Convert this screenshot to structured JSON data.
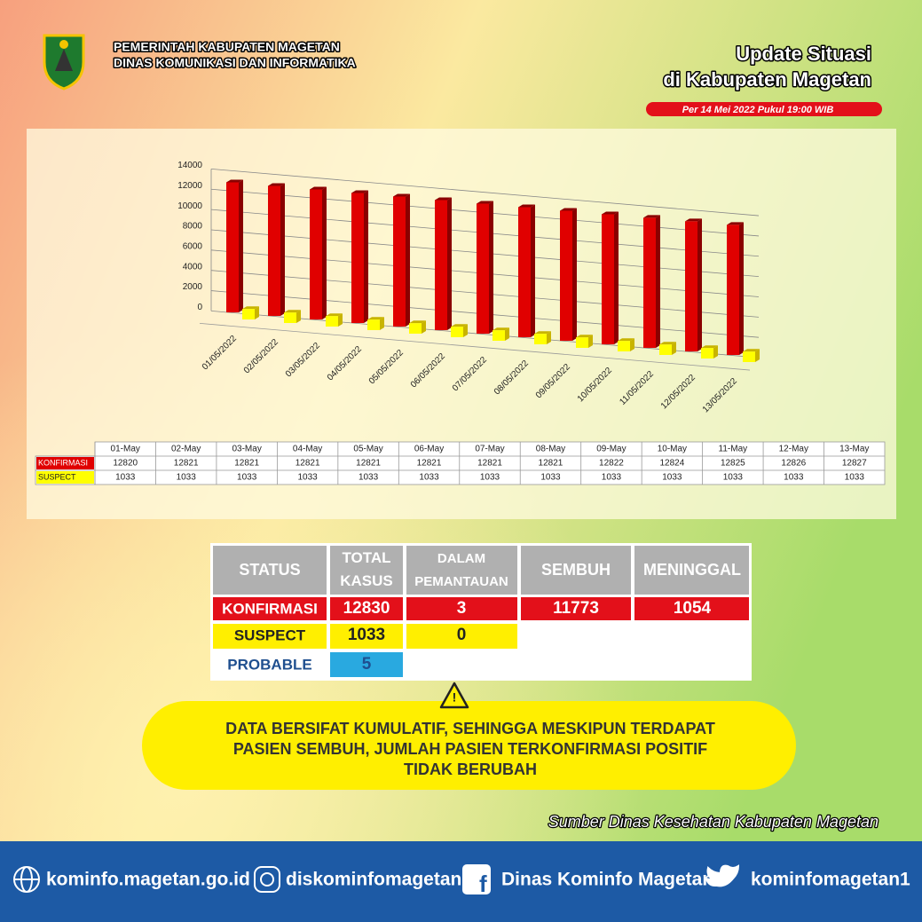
{
  "header": {
    "org_line1": "PEMERINTAH KABUPATEN MAGETAN",
    "org_line2": "DINAS KOMUNIKASI DAN INFORMATIKA",
    "title_line1": "Update Situasi",
    "title_line2": "di Kabupaten Magetan",
    "date": "Per 14 Mei 2022 Pukul 19:00 WIB"
  },
  "chart_data": {
    "type": "bar",
    "categories": [
      "01/05/2022",
      "02/05/2022",
      "03/05/2022",
      "04/05/2022",
      "05/05/2022",
      "06/05/2022",
      "07/05/2022",
      "08/05/2022",
      "09/05/2022",
      "10/05/2022",
      "11/05/2022",
      "12/05/2022",
      "13/05/2022"
    ],
    "table_categories": [
      "01-May",
      "02-May",
      "03-May",
      "04-May",
      "05-May",
      "06-May",
      "07-May",
      "08-May",
      "09-May",
      "10-May",
      "11-May",
      "12-May",
      "13-May"
    ],
    "series": [
      {
        "name": "KONFIRMASI",
        "color": "#e00000",
        "values": [
          12820,
          12821,
          12821,
          12821,
          12821,
          12821,
          12821,
          12821,
          12822,
          12824,
          12825,
          12826,
          12827
        ]
      },
      {
        "name": "SUSPECT",
        "color": "#ffff00",
        "values": [
          1033,
          1033,
          1033,
          1033,
          1033,
          1033,
          1033,
          1033,
          1033,
          1033,
          1033,
          1033,
          1033
        ]
      }
    ],
    "ylim": [
      0,
      14000
    ],
    "yticks": [
      0,
      2000,
      4000,
      6000,
      8000,
      10000,
      12000,
      14000
    ],
    "grid": true
  },
  "status_table": {
    "headers": [
      "STATUS",
      "TOTAL KASUS",
      "DALAM PEMANTAUAN",
      "SEMBUH",
      "MENINGGAL"
    ],
    "rows": [
      [
        "KONFIRMASI",
        "12830",
        "3",
        "11773",
        "1054"
      ],
      [
        "SUSPECT",
        "1033",
        "0"
      ],
      [
        "PROBABLE",
        "5"
      ]
    ]
  },
  "warning": [
    "DATA BERSIFAT KUMULATIF, SEHINGGA MESKIPUN TERDAPAT",
    "PASIEN SEMBUH, JUMLAH PASIEN TERKONFIRMASI POSITIF",
    "TIDAK BERUBAH"
  ],
  "source": "Sumber Dinas Kesehatan Kabupaten Magetan",
  "footer": [
    "kominfo.magetan.go.id",
    "diskominfomagetan",
    "Dinas Kominfo Magetan",
    "kominfomagetan1"
  ]
}
